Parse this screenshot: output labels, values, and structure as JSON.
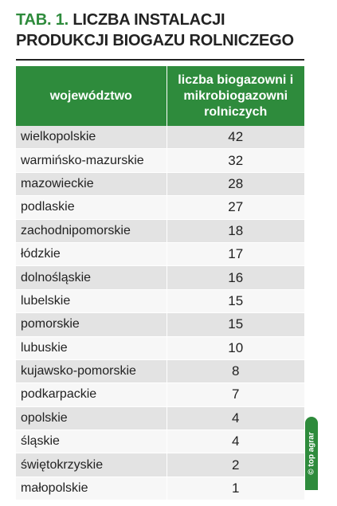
{
  "title": {
    "prefix": "TAB. 1.",
    "line1_rest": " LICZBA INSTALACJI",
    "line2": "PRODUKCJI BIOGAZU ROLNICZEGO"
  },
  "table": {
    "headers": [
      "województwo",
      "liczba biogazowni i mikrobiogazowni rolniczych"
    ],
    "rows": [
      {
        "region": "wielkopolskie",
        "count": "42"
      },
      {
        "region": "warmińsko-mazurskie",
        "count": "32"
      },
      {
        "region": "mazowieckie",
        "count": "28"
      },
      {
        "region": "podlaskie",
        "count": "27"
      },
      {
        "region": "zachodnipomorskie",
        "count": "18"
      },
      {
        "region": "łódzkie",
        "count": "17"
      },
      {
        "region": "dolnośląskie",
        "count": "16"
      },
      {
        "region": "lubelskie",
        "count": "15"
      },
      {
        "region": "pomorskie",
        "count": "15"
      },
      {
        "region": "lubuskie",
        "count": "10"
      },
      {
        "region": "kujawsko-pomorskie",
        "count": "8"
      },
      {
        "region": "podkarpackie",
        "count": "7"
      },
      {
        "region": "opolskie",
        "count": "4"
      },
      {
        "region": "śląskie",
        "count": "4"
      },
      {
        "region": "świętokrzyskie",
        "count": "2"
      },
      {
        "region": "małopolskie",
        "count": "1"
      }
    ]
  },
  "watermark": "© top agrar",
  "colors": {
    "accent_green": "#2e8b3c",
    "row_odd": "#e3e3e3",
    "row_even": "#f7f7f7",
    "text": "#222222"
  }
}
